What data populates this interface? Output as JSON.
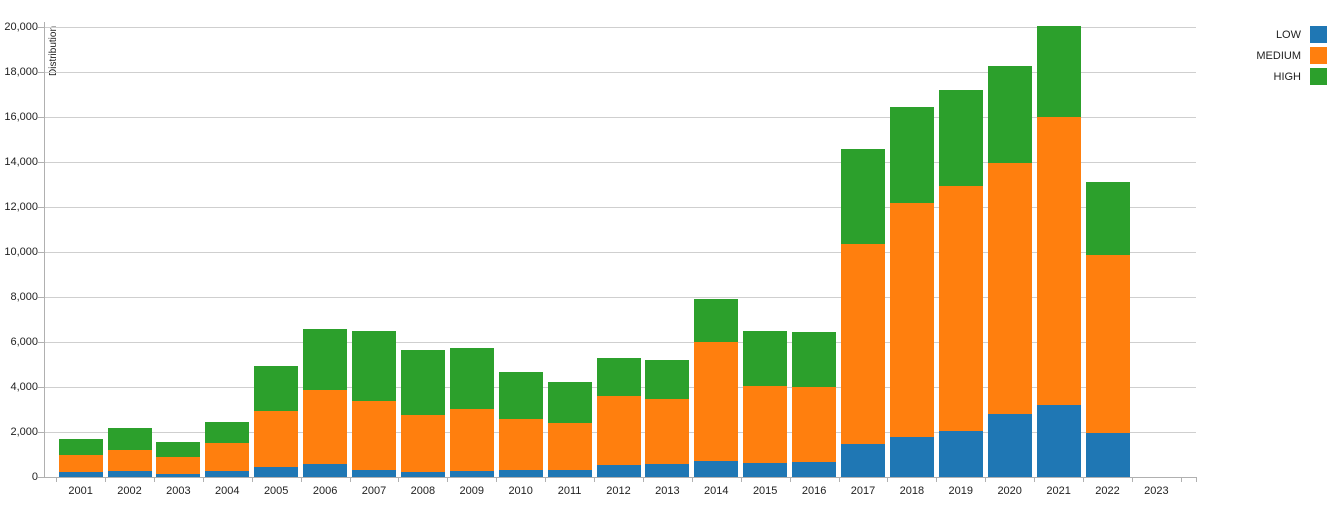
{
  "chart_data": {
    "type": "bar",
    "stacked": true,
    "title": "",
    "xlabel": "",
    "ylabel": "Distribution",
    "ylim": [
      0,
      20000
    ],
    "ytick_step": 2000,
    "grid": true,
    "legend_position": "top-right-outside",
    "categories": [
      "2001",
      "2002",
      "2003",
      "2004",
      "2005",
      "2006",
      "2007",
      "2008",
      "2009",
      "2010",
      "2011",
      "2012",
      "2013",
      "2014",
      "2015",
      "2016",
      "2017",
      "2018",
      "2019",
      "2020",
      "2021",
      "2022",
      "2023"
    ],
    "series": [
      {
        "name": "LOW",
        "color": "#1f77b4",
        "values": [
          220,
          250,
          150,
          280,
          450,
          570,
          300,
          240,
          250,
          300,
          320,
          530,
          580,
          710,
          620,
          670,
          1470,
          1780,
          2040,
          2810,
          3210,
          1960,
          0
        ]
      },
      {
        "name": "MEDIUM",
        "color": "#ff7f0e",
        "values": [
          760,
          950,
          740,
          1220,
          2500,
          3300,
          3090,
          2520,
          2760,
          2280,
          2070,
          3060,
          2890,
          5290,
          3420,
          3350,
          8890,
          10400,
          10890,
          11150,
          12790,
          7910,
          0
        ]
      },
      {
        "name": "HIGH",
        "color": "#2ca02c",
        "values": [
          710,
          980,
          660,
          950,
          1970,
          2700,
          3080,
          2880,
          2720,
          2090,
          1820,
          1700,
          1730,
          1910,
          2450,
          2440,
          4220,
          4270,
          4270,
          4310,
          4050,
          3240,
          0
        ]
      }
    ],
    "totals": [
      1690,
      2180,
      1550,
      2450,
      4920,
      6570,
      6470,
      5640,
      5730,
      4670,
      4210,
      5290,
      5200,
      7910,
      6490,
      6460,
      14580,
      16450,
      17200,
      18270,
      20050,
      13110,
      0
    ]
  },
  "colors": {
    "gridline": "#cfcfcf",
    "axis": "#b0b0b0",
    "tick_text": "#222222",
    "background": "#ffffff"
  }
}
